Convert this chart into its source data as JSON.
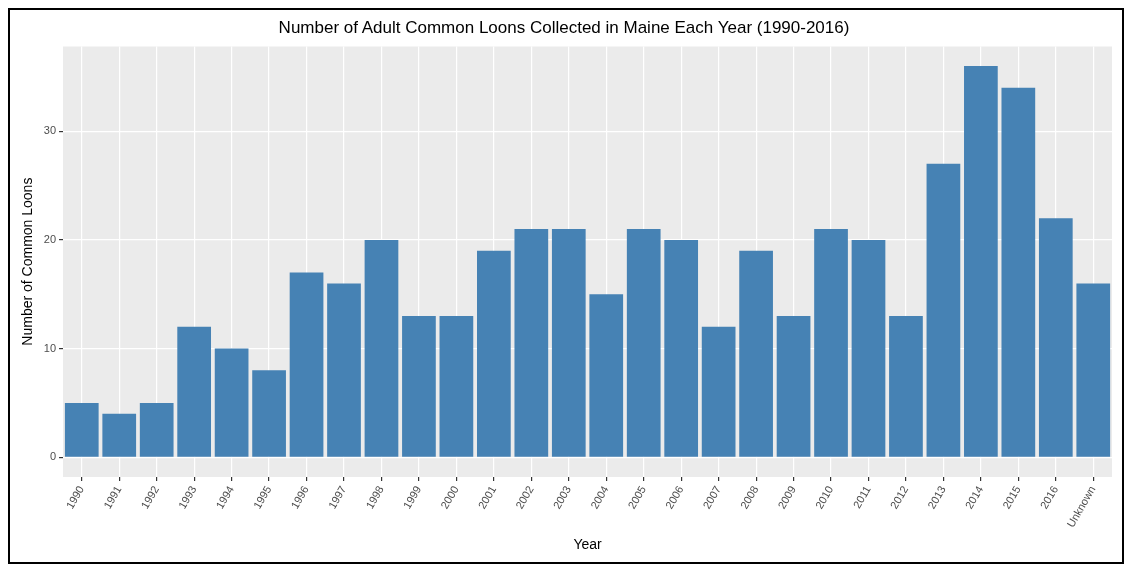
{
  "chart_data": {
    "type": "bar",
    "title": "Number of Adult Common Loons Collected in Maine Each Year (1990-2016)",
    "xlabel": "Year",
    "ylabel": "Number of Common Loons",
    "categories": [
      "1990",
      "1991",
      "1992",
      "1993",
      "1994",
      "1995",
      "1996",
      "1997",
      "1998",
      "1999",
      "2000",
      "2001",
      "2002",
      "2003",
      "2004",
      "2005",
      "2006",
      "2007",
      "2008",
      "2009",
      "2010",
      "2011",
      "2012",
      "2013",
      "2014",
      "2015",
      "2016",
      "Unknown"
    ],
    "values": [
      5,
      4,
      5,
      12,
      10,
      8,
      17,
      16,
      20,
      13,
      13,
      19,
      21,
      21,
      15,
      21,
      20,
      12,
      19,
      13,
      21,
      20,
      13,
      27,
      36,
      34,
      22,
      16
    ],
    "color": "#4682b4",
    "ylim": [
      -1.8,
      37.8
    ],
    "yticks": [
      0,
      10,
      20,
      30
    ],
    "grid": true,
    "legend": false
  }
}
